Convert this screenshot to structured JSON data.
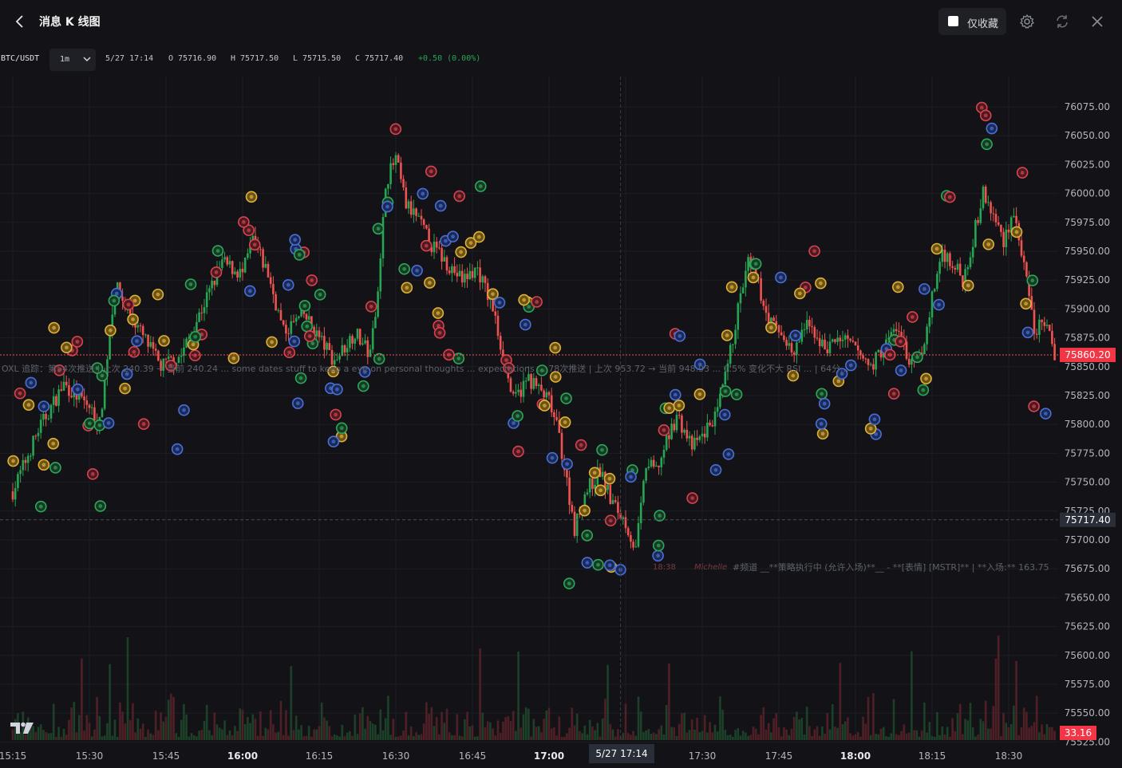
{
  "header": {
    "title": "消息 K 线图",
    "favorite_label": "仅收藏"
  },
  "info": {
    "symbol": "BTC/USDT",
    "timeframe": "1m",
    "date": "5/27 17:14",
    "open": "O 75716.90",
    "high": "H 75717.50",
    "low": "L 75715.50",
    "close": "C 75717.40",
    "change": "+0.50 (0.00%)"
  },
  "colors": {
    "up": "#26a653",
    "down": "#ef5350",
    "background": "#131317",
    "price_badge": "#f23645",
    "crosshair_badge": "#2a2e39"
  },
  "chart_data": {
    "type": "candlestick",
    "y_axis": {
      "ticks": [
        "76075.00",
        "76050.00",
        "76025.00",
        "76000.00",
        "75975.00",
        "75950.00",
        "75925.00",
        "75900.00",
        "75875.00",
        "75850.00",
        "75825.00",
        "75800.00",
        "75775.00",
        "75750.00",
        "75725.00",
        "75700.00",
        "75675.00",
        "75650.00",
        "75625.00",
        "75600.00",
        "75575.00",
        "75550.00",
        "75525.00"
      ],
      "range": [
        75519,
        76082
      ]
    },
    "x_axis": {
      "ticks": [
        "15:15",
        "15:30",
        "15:45",
        "16:00",
        "16:15",
        "16:30",
        "16:45",
        "17:00",
        "17:15",
        "17:30",
        "17:45",
        "18:00",
        "18:15",
        "18:30"
      ],
      "bold_ticks": [
        "16:00",
        "17:00",
        "18:00"
      ],
      "range": [
        "15:15",
        "18:39"
      ]
    },
    "last_price": "75860.20",
    "volume_label": "33.16",
    "crosshair": {
      "price": "75717.40",
      "time": "5/27 17:14"
    },
    "anchors": [
      [
        "15:15",
        75742
      ],
      [
        "15:20",
        75795
      ],
      [
        "15:25",
        75835
      ],
      [
        "15:30",
        75815
      ],
      [
        "15:32",
        75800
      ],
      [
        "15:35",
        75920
      ],
      [
        "15:40",
        75880
      ],
      [
        "15:44",
        75850
      ],
      [
        "15:48",
        75860
      ],
      [
        "15:52",
        75900
      ],
      [
        "15:56",
        75940
      ],
      [
        "16:00",
        75930
      ],
      [
        "16:02",
        75960
      ],
      [
        "16:05",
        75930
      ],
      [
        "16:08",
        75880
      ],
      [
        "16:12",
        75895
      ],
      [
        "16:15",
        75875
      ],
      [
        "16:18",
        75855
      ],
      [
        "16:22",
        75880
      ],
      [
        "16:25",
        75860
      ],
      [
        "16:27",
        75940
      ],
      [
        "16:28",
        76010
      ],
      [
        "16:30",
        76030
      ],
      [
        "16:32",
        75990
      ],
      [
        "16:34",
        75980
      ],
      [
        "16:37",
        75955
      ],
      [
        "16:40",
        75940
      ],
      [
        "16:43",
        75925
      ],
      [
        "16:46",
        75935
      ],
      [
        "16:49",
        75900
      ],
      [
        "16:51",
        75860
      ],
      [
        "16:53",
        75820
      ],
      [
        "16:56",
        75840
      ],
      [
        "16:58",
        75830
      ],
      [
        "17:00",
        75820
      ],
      [
        "17:02",
        75790
      ],
      [
        "17:05",
        75710
      ],
      [
        "17:07",
        75740
      ],
      [
        "17:10",
        75760
      ],
      [
        "17:12",
        75735
      ],
      [
        "17:15",
        75715
      ],
      [
        "17:17",
        75690
      ],
      [
        "17:19",
        75765
      ],
      [
        "17:21",
        75760
      ],
      [
        "17:25",
        75808
      ],
      [
        "17:28",
        75780
      ],
      [
        "17:30",
        75790
      ],
      [
        "17:33",
        75810
      ],
      [
        "17:35",
        75850
      ],
      [
        "17:37",
        75900
      ],
      [
        "17:39",
        75940
      ],
      [
        "17:41",
        75920
      ],
      [
        "17:43",
        75890
      ],
      [
        "17:46",
        75875
      ],
      [
        "17:48",
        75860
      ],
      [
        "17:50",
        75885
      ],
      [
        "17:52",
        75880
      ],
      [
        "17:54",
        75865
      ],
      [
        "17:57",
        75875
      ],
      [
        "18:00",
        75865
      ],
      [
        "18:03",
        75850
      ],
      [
        "18:06",
        75870
      ],
      [
        "18:08",
        75885
      ],
      [
        "18:11",
        75850
      ],
      [
        "18:13",
        75860
      ],
      [
        "18:15",
        75910
      ],
      [
        "18:17",
        75950
      ],
      [
        "18:19",
        75940
      ],
      [
        "18:21",
        75925
      ],
      [
        "18:23",
        75960
      ],
      [
        "18:25",
        76000
      ],
      [
        "18:27",
        75980
      ],
      [
        "18:29",
        75960
      ],
      [
        "18:31",
        75985
      ],
      [
        "18:33",
        75935
      ],
      [
        "18:35",
        75880
      ],
      [
        "18:37",
        75890
      ],
      [
        "18:39",
        75860
      ]
    ],
    "sample_candles": [
      {
        "time": "17:14",
        "open": 75716.9,
        "high": 75717.5,
        "low": 75715.5,
        "close": 75717.4
      }
    ]
  },
  "overlay_texts": {
    "ticker_line_1": "OXL 追踪：第54次推送 | 上次 240.39 → 当前 240.24 ... some dates stuff to keep a eye on personal thoughts ... expectations ... 78次推送 | 上次 953.72 → 当前 948.93 ... 0.5% 变化不大 RSI ... | 64分...",
    "ticker_line_2_time": "18:38",
    "ticker_line_2_user": "Michelle",
    "ticker_line_2": "#频道 __**策略执行中 (允许入场)**__ - **[表情] [MSTR]** | **入场:** 163.75"
  }
}
